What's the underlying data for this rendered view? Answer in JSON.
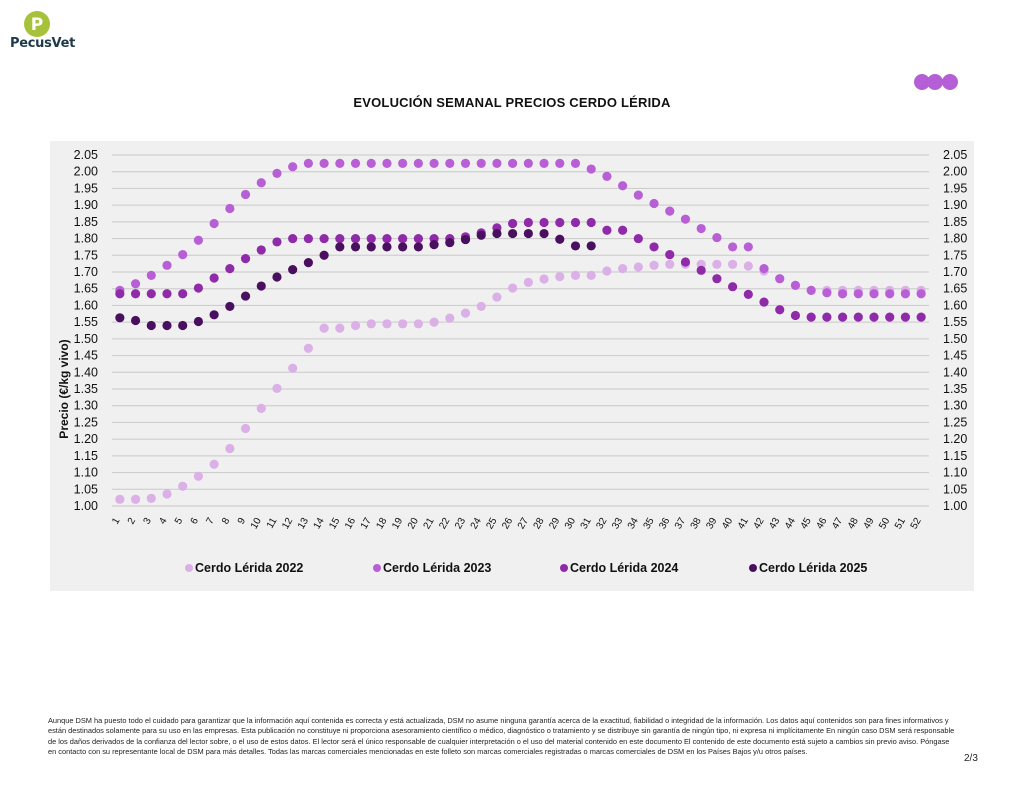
{
  "brand": {
    "name": "PecusVet",
    "logo_letter": "P",
    "logo_color": "#a6c23a"
  },
  "decor_dot_color": "#b55fd6",
  "page_number": "2/3",
  "disclaimer": "Aunque DSM ha puesto todo el cuidado para garantizar que la información aquí contenida es correcta y está actualizada, DSM no asume ninguna garantía acerca de la exactitud, fiabilidad o integridad de la información. Los datos aquí contenidos son para fines informativos y están destinados solamente para su uso en las empresas. Esta publicación no constituye ni proporciona asesoramiento científico o médico, diagnóstico o tratamiento y se distribuye sin garantía de ningún tipo, ni expresa ni implícitamente En ningún caso DSM será responsable de los daños derivados de la confianza del lector sobre, o el uso de estos datos. El lector será el único responsable de cualquier interpretación o el uso del material contenido en este documento El contenido de este documento está sujeto a cambios sin previo aviso. Póngase en contacto con su representante local de DSM para más detalles. Todas las marcas comerciales mencionadas en este folleto son marcas comerciales registradas o marcas comerciales de DSM en los Países Bajos y/u otros países.",
  "chart_data": {
    "type": "scatter",
    "title": "EVOLUCIÓN SEMANAL PRECIOS CERDO LÉRIDA",
    "xlabel": "",
    "ylabel": "Precio (€/kg vivo)",
    "ylim": [
      1.0,
      2.05
    ],
    "yticks": [
      "1.00",
      "1.05",
      "1.10",
      "1.15",
      "1.20",
      "1.25",
      "1.30",
      "1.35",
      "1.40",
      "1.45",
      "1.50",
      "1.55",
      "1.60",
      "1.65",
      "1.70",
      "1.75",
      "1.80",
      "1.85",
      "1.90",
      "1.95",
      "2.00",
      "2.05"
    ],
    "y_axis_right": true,
    "grid": true,
    "legend": "bottom",
    "x": [
      1,
      2,
      3,
      4,
      5,
      6,
      7,
      8,
      9,
      10,
      11,
      12,
      13,
      14,
      15,
      16,
      17,
      18,
      19,
      20,
      21,
      22,
      23,
      24,
      25,
      26,
      27,
      28,
      29,
      30,
      31,
      32,
      33,
      34,
      35,
      36,
      37,
      38,
      39,
      40,
      41,
      42,
      43,
      44,
      45,
      46,
      47,
      48,
      49,
      50,
      51,
      52
    ],
    "series": [
      {
        "name": "Cerdo Lérida 2022",
        "color": "#dbb0e6",
        "values": [
          1.02,
          1.02,
          1.023,
          1.036,
          1.059,
          1.089,
          1.125,
          1.172,
          1.232,
          1.292,
          1.352,
          1.412,
          1.472,
          1.532,
          1.532,
          1.54,
          1.545,
          1.545,
          1.545,
          1.545,
          1.55,
          1.562,
          1.577,
          1.597,
          1.625,
          1.652,
          1.669,
          1.679,
          1.686,
          1.69,
          1.69,
          1.703,
          1.71,
          1.715,
          1.72,
          1.723,
          1.723,
          1.723,
          1.723,
          1.723,
          1.718,
          1.703,
          1.68,
          1.66,
          1.645,
          1.645,
          1.645,
          1.645,
          1.645,
          1.645,
          1.645,
          1.645
        ]
      },
      {
        "name": "Cerdo Lérida 2023",
        "color": "#b85fd6",
        "values": [
          1.645,
          1.665,
          1.69,
          1.72,
          1.752,
          1.795,
          1.845,
          1.89,
          1.932,
          1.967,
          1.995,
          2.015,
          2.025,
          2.025,
          2.025,
          2.025,
          2.025,
          2.025,
          2.025,
          2.025,
          2.025,
          2.025,
          2.025,
          2.025,
          2.025,
          2.025,
          2.025,
          2.025,
          2.025,
          2.025,
          2.008,
          1.986,
          1.958,
          1.93,
          1.905,
          1.882,
          1.858,
          1.83,
          1.803,
          1.775,
          1.775,
          1.71,
          1.68,
          1.66,
          1.645,
          1.638,
          1.635,
          1.635,
          1.635,
          1.635,
          1.635,
          1.635
        ]
      },
      {
        "name": "Cerdo Lérida 2024",
        "color": "#8f2aa8",
        "values": [
          1.635,
          1.635,
          1.635,
          1.635,
          1.635,
          1.652,
          1.682,
          1.71,
          1.74,
          1.766,
          1.79,
          1.8,
          1.8,
          1.8,
          1.8,
          1.8,
          1.8,
          1.8,
          1.8,
          1.8,
          1.8,
          1.8,
          1.805,
          1.817,
          1.832,
          1.845,
          1.848,
          1.848,
          1.848,
          1.848,
          1.848,
          1.825,
          1.825,
          1.8,
          1.775,
          1.752,
          1.73,
          1.705,
          1.68,
          1.656,
          1.633,
          1.61,
          1.587,
          1.57,
          1.565,
          1.565,
          1.565,
          1.565,
          1.565,
          1.565,
          1.565,
          1.565
        ]
      },
      {
        "name": "Cerdo Lérida 2025",
        "color": "#4a1060",
        "values": [
          1.563,
          1.555,
          1.54,
          1.54,
          1.54,
          1.552,
          1.572,
          1.597,
          1.628,
          1.658,
          1.685,
          1.707,
          1.728,
          1.75,
          1.775,
          1.775,
          1.775,
          1.775,
          1.775,
          1.775,
          1.782,
          1.788,
          1.797,
          1.81,
          1.815,
          1.815,
          1.815,
          1.815,
          1.798,
          1.778,
          1.778,
          null,
          null,
          null,
          null,
          null,
          null,
          null,
          null,
          null,
          null,
          null,
          null,
          null,
          null,
          null,
          null,
          null,
          null,
          null,
          null,
          null
        ]
      }
    ]
  }
}
